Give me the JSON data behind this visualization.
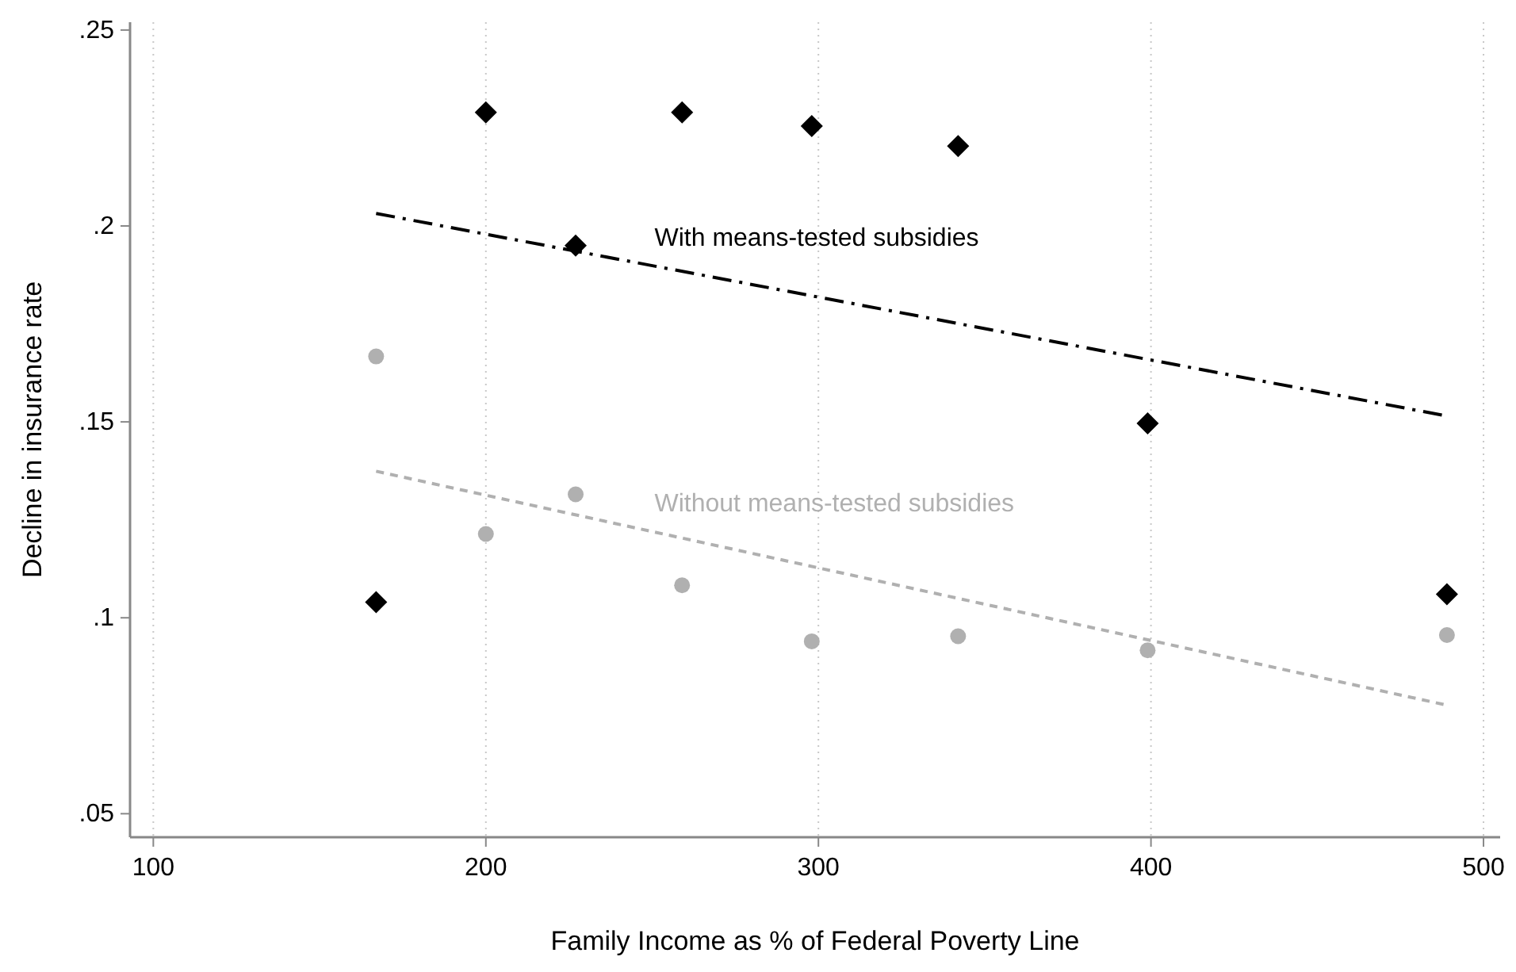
{
  "chart_data": {
    "type": "scatter",
    "xlabel": "Family Income as % of Federal Poverty Line",
    "ylabel": "Decline in insurance rate",
    "xlim": [
      93,
      505
    ],
    "xticks": [
      100,
      200,
      300,
      400,
      500
    ],
    "ylim": [
      0.044,
      0.252
    ],
    "yticks": [
      {
        "value": 0.05,
        "label": ".05"
      },
      {
        "value": 0.1,
        "label": ".1"
      },
      {
        "value": 0.15,
        "label": ".15"
      },
      {
        "value": 0.2,
        "label": ".2"
      },
      {
        "value": 0.25,
        "label": ".25"
      }
    ],
    "grid": "x",
    "series": [
      {
        "marker": "diamond",
        "color": "#000000",
        "x": [
          167,
          200,
          227,
          259,
          298,
          342,
          399,
          489
        ],
        "values": [
          0.104,
          0.229,
          0.195,
          0.229,
          0.2255,
          0.2204,
          0.1496,
          0.106
        ]
      },
      {
        "marker": "circle",
        "color": "#b0b0b0",
        "x": [
          167,
          200,
          227,
          259,
          298,
          342,
          399,
          489
        ],
        "values": [
          0.1667,
          0.1214,
          0.1315,
          0.1083,
          0.094,
          0.0953,
          0.0917,
          0.0956
        ]
      },
      {
        "type": "line",
        "name": "With means-tested subsidies",
        "line_style": "dashdot",
        "marker": "none",
        "color": "#000000",
        "x": [
          167,
          489
        ],
        "values": [
          0.2032,
          0.1515
        ]
      },
      {
        "type": "line",
        "name": "Without means-tested subsidies",
        "line_style": "dashed",
        "marker": "none",
        "color": "#b0b0b0",
        "x": [
          167,
          489
        ],
        "values": [
          0.1374,
          0.0777
        ]
      }
    ]
  }
}
